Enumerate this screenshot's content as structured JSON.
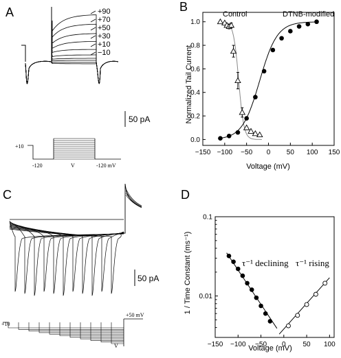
{
  "panels": {
    "A": {
      "letter": "A",
      "trace_labels": [
        "+90",
        "+70",
        "+50",
        "+30",
        "+10",
        "−10"
      ],
      "scale_bar_label": "50 pA",
      "protocol": {
        "hold_label": "+10",
        "left_label": "-120",
        "step_label": "V",
        "right_label": "-120 mV"
      }
    },
    "C": {
      "letter": "C",
      "scale_bar_label": "50 pA",
      "protocol": {
        "hold_label": "+10",
        "step_label": "V",
        "end_label": "+50 mV"
      }
    }
  },
  "chart_data": [
    {
      "panel": "B",
      "letter": "B",
      "type": "scatter",
      "xlabel": "Voltage (mV)",
      "ylabel": "Normalized Tail Current",
      "xlim": [
        -150,
        150
      ],
      "ylim": [
        -0.05,
        1.08
      ],
      "xticks": [
        -150,
        -100,
        -50,
        0,
        50,
        100,
        150
      ],
      "yticks": [
        0.0,
        0.2,
        0.4,
        0.6,
        0.8,
        1.0
      ],
      "annotations": [
        "Control",
        "DTNB-modified"
      ],
      "series": [
        {
          "name": "Control",
          "marker": "open-triangle",
          "x": [
            -110,
            -100,
            -95,
            -90,
            -85,
            -80,
            -70,
            -60,
            -50,
            -40,
            -30,
            -20
          ],
          "y": [
            1.0,
            0.99,
            0.97,
            0.96,
            0.97,
            0.75,
            0.5,
            0.23,
            0.1,
            0.07,
            0.05,
            0.04
          ],
          "err": [
            0,
            0,
            0,
            0.02,
            0.02,
            0.05,
            0.07,
            0.04,
            0,
            0,
            0,
            0
          ],
          "fit": {
            "v_half": -68,
            "slope": 6
          }
        },
        {
          "name": "DTNB-modified",
          "marker": "filled-circle",
          "x": [
            -110,
            -90,
            -70,
            -50,
            -30,
            -10,
            10,
            30,
            50,
            70,
            90,
            110
          ],
          "y": [
            0.01,
            0.03,
            0.06,
            0.18,
            0.36,
            0.58,
            0.76,
            0.86,
            0.92,
            0.96,
            0.98,
            1.0
          ],
          "fit": {
            "v_half": -20,
            "slope": 20
          }
        }
      ]
    },
    {
      "panel": "D",
      "letter": "D",
      "type": "scatter",
      "xlabel": "Voltage (mV)",
      "ylabel": "1 / Time Constant (ms⁻¹)",
      "log_y": true,
      "xlim": [
        -150,
        110
      ],
      "ylim": [
        0.003,
        0.1
      ],
      "xticks": [
        -150,
        -100,
        -50,
        0,
        50,
        100
      ],
      "yticks": [
        0.01,
        0.1
      ],
      "annotations": [
        "τ⁻¹ declining",
        "τ⁻¹ rising"
      ],
      "series": [
        {
          "name": "τ⁻¹ declining",
          "marker": "filled-circle",
          "x": [
            -120,
            -110,
            -100,
            -90,
            -80,
            -70,
            -60,
            -50,
            -40,
            -30
          ],
          "y": [
            0.032,
            0.027,
            0.022,
            0.018,
            0.0145,
            0.012,
            0.0095,
            0.0075,
            0.006,
            0.0048
          ],
          "fit": {
            "x": [
              -125,
              -15
            ],
            "y": [
              0.035,
              0.0039
            ]
          }
        },
        {
          "name": "τ⁻¹ rising",
          "marker": "open-circle",
          "x": [
            10,
            30,
            50,
            70,
            90
          ],
          "y": [
            0.0042,
            0.0057,
            0.0078,
            0.0105,
            0.0145
          ],
          "fit": {
            "x": [
              -10,
              100
            ],
            "y": [
              0.0033,
              0.017
            ]
          }
        }
      ]
    }
  ]
}
